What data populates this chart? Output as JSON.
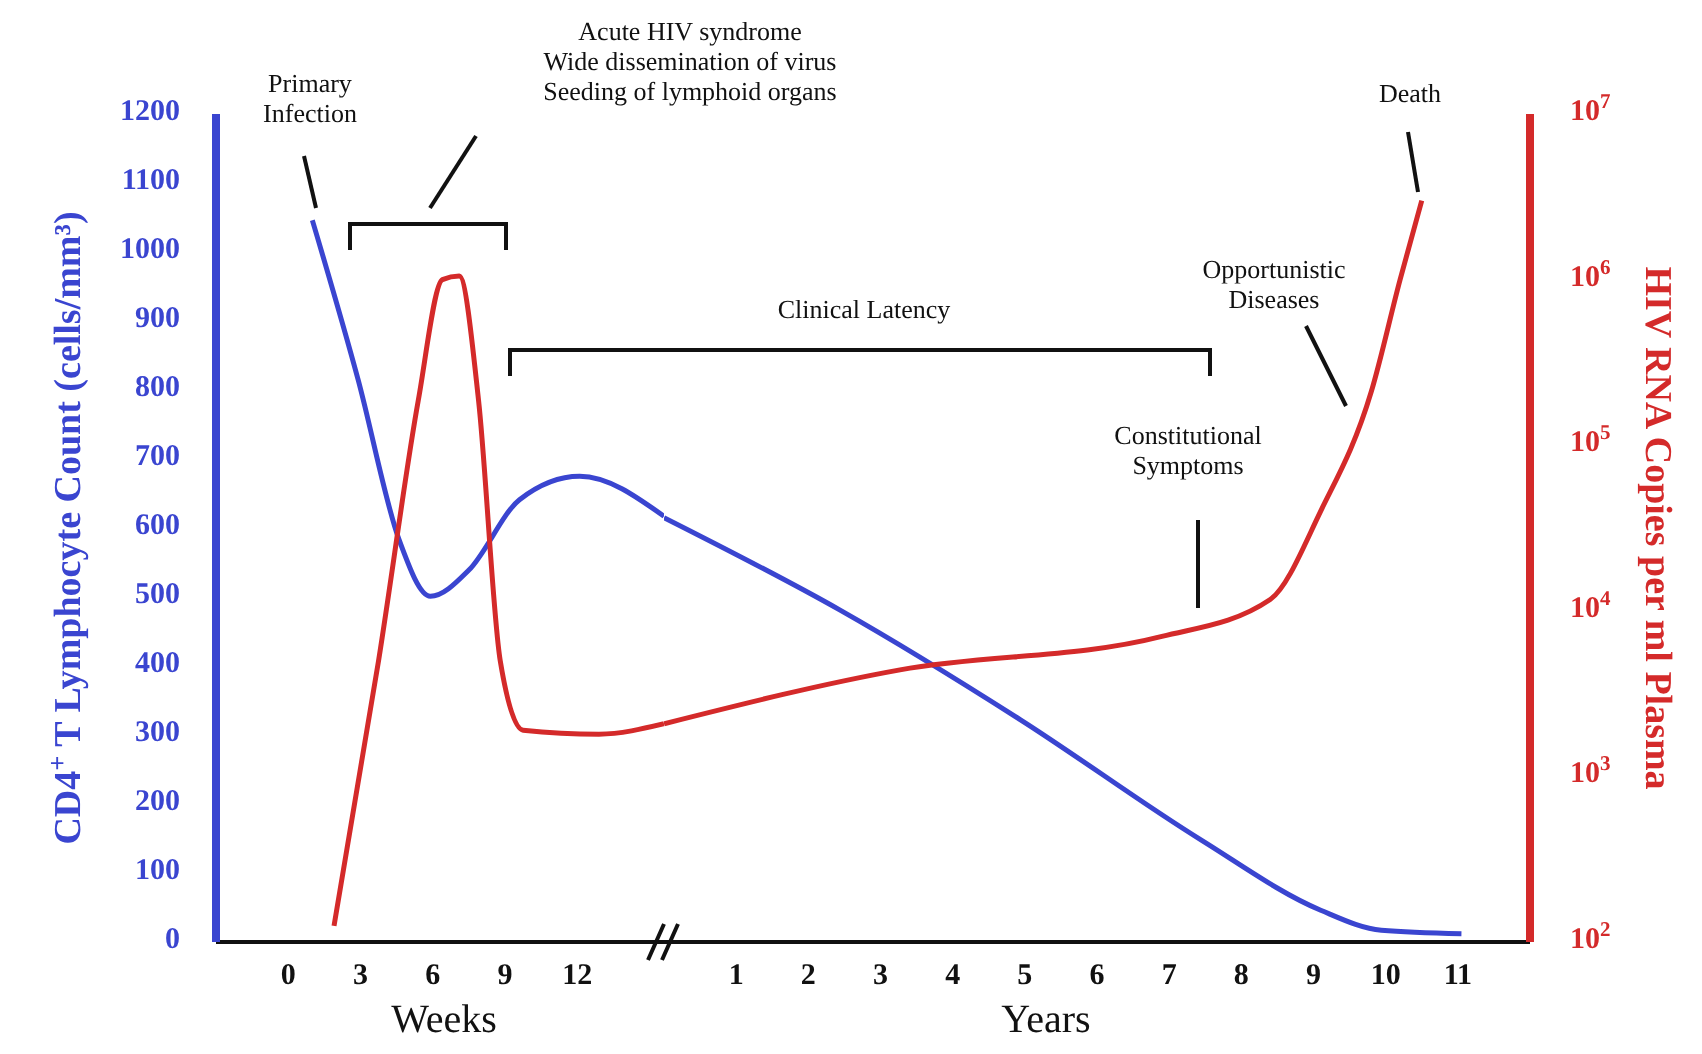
{
  "chart_data": [
    {
      "type": "line",
      "ylabel": "CD4$^{+}$ T Lymphocyte Count (cells/mm³)",
      "xlim": [
        -3,
        15.6
      ],
      "xticks": [
        0,
        3,
        6,
        9,
        12
      ],
      "ylim": [
        0,
        1200
      ],
      "yticks": [
        0,
        100,
        200,
        300,
        400,
        500,
        600,
        700,
        800,
        900,
        1000,
        1100,
        1200
      ],
      "y2lim": [
        100,
        10000000
      ],
      "log": "y2",
      "tick_labels": [
        "x",
        "y"
      ],
      "marker": "none",
      "line_style": "solid",
      "series": [
        {
          "color": "#3a45d0",
          "x": [
            1,
            2.9,
            4.6,
            5.9,
            7.5,
            9.6,
            12.1,
            15.6
          ],
          "values": [
            1046,
            815,
            583,
            501,
            539,
            641,
            675,
            617
          ]
        },
        {
          "color": "#d42a2a",
          "axis": "y2",
          "x": [
            1.9,
            3.75,
            5.4,
            6.4,
            7.1,
            7.9,
            8.8,
            9.75,
            12.9,
            15.6
          ],
          "values": [
            125,
            5000,
            187000,
            1000000,
            1050000,
            187000,
            5000,
            1900,
            1800,
            2080
          ]
        }
      ],
      "annotations": [
        "Primary\nInfection",
        "Acute HIV syndrome\nWide dissemination of virus\nSeeding of lymphoid organs",
        "Weeks"
      ]
    },
    {
      "type": "line",
      "y2label": "HIV RNA Copies per ml Plasma",
      "xlim": [
        0,
        12
      ],
      "xticks": [
        1,
        2,
        3,
        4,
        5,
        6,
        7,
        8,
        9,
        10,
        11
      ],
      "ylim": [
        0,
        1200
      ],
      "y2lim": [
        100,
        10000000
      ],
      "y2ticks": [
        {
          "value": 100,
          "label": "10$^{2}$"
        },
        {
          "value": 1000,
          "label": "10$^{3}$"
        },
        {
          "value": 10000,
          "label": "10$^{4}$"
        },
        {
          "value": 100000,
          "label": "10$^{5}$"
        },
        {
          "value": 1000000,
          "label": "10$^{6}$"
        },
        {
          "value": 10000000,
          "label": "10$^{7}$"
        }
      ],
      "log": "y2",
      "tick_labels": [
        "x",
        "y2"
      ],
      "marker": "none",
      "line_style": "solid",
      "series": [
        {
          "color": "#3a45d0",
          "x": [
            0,
            2.44,
            4.94,
            7.44,
            9.1,
            9.94,
            11.05
          ],
          "values": [
            615,
            481,
            322,
            148,
            46,
            17,
            12
          ]
        },
        {
          "color": "#d42a2a",
          "axis": "y2",
          "x": [
            0,
            3.27,
            6.9,
            8.4,
            9.1,
            9.8,
            10.2,
            10.5
          ],
          "values": [
            2080,
            4400,
            7000,
            11700,
            40000,
            210000,
            1000000,
            3000000
          ]
        }
      ],
      "annotations": [
        "Clinical Latency",
        "Constitutional\nSymptoms",
        "Opportunistic\nDiseases",
        "Death",
        "Years"
      ]
    }
  ]
}
